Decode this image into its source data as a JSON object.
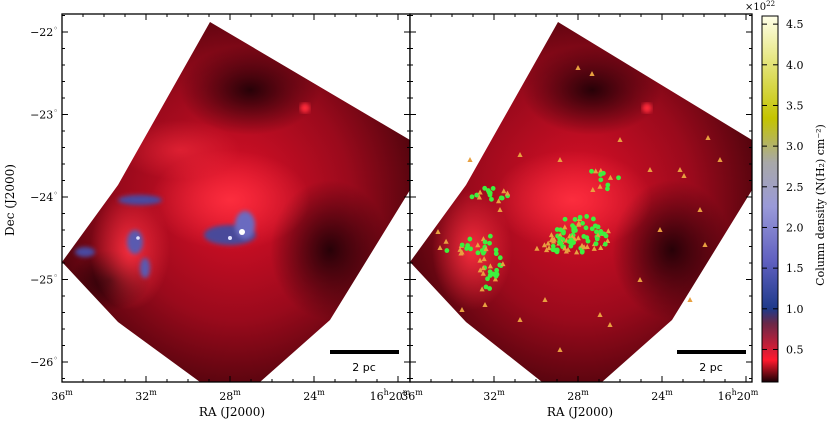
{
  "figure": {
    "x_axis_title": "RA (J2000)",
    "y_axis_title": "Dec (J2000)",
    "dec_ticks": [
      {
        "deg": "−22",
        "sup": "◦",
        "value": -22
      },
      {
        "deg": "−23",
        "sup": "◦",
        "value": -23
      },
      {
        "deg": "−24",
        "sup": "◦",
        "value": -24
      },
      {
        "deg": "−25",
        "sup": "◦",
        "value": -25
      },
      {
        "deg": "−26",
        "sup": "◦",
        "value": -26
      }
    ],
    "ra_ticks_left": [
      {
        "main": "36",
        "sup": "m",
        "value": 36
      },
      {
        "main": "32",
        "sup": "m",
        "value": 32
      },
      {
        "main": "28",
        "sup": "m",
        "value": 28
      },
      {
        "main": "24",
        "sup": "m",
        "value": 24
      },
      {
        "main": "16",
        "sup1": "h",
        "main2": "20",
        "sup": "m",
        "value": 20
      }
    ],
    "ra_ticks_right": [
      {
        "main": "36",
        "sup": "m",
        "value": 36
      },
      {
        "main": "32",
        "sup": "m",
        "value": 32
      },
      {
        "main": "28",
        "sup": "m",
        "value": 28
      },
      {
        "main": "24",
        "sup": "m",
        "value": 24
      },
      {
        "main": "16",
        "sup1": "h",
        "main2": "20",
        "sup": "m",
        "value": 20
      }
    ],
    "scalebar_label_left": "2 pc",
    "scalebar_label_right": "2 pc"
  },
  "colorbar": {
    "label": "Column density (N(H₂) cm⁻²)",
    "multiplier": "×10",
    "multiplier_exp": "22",
    "ticks": [
      "0.5",
      "1.0",
      "1.5",
      "2.0",
      "2.5",
      "3.0",
      "3.5",
      "4.0",
      "4.5"
    ],
    "range": [
      0.1,
      4.6
    ],
    "colors": [
      "#1a0005",
      "#ff1a2e",
      "#5a2a4a",
      "#1e3a8a",
      "#7c7ccf",
      "#a0a0a0",
      "#c4c400",
      "#ffffe0"
    ]
  },
  "markers": {
    "triangle_color": "#e8a040",
    "circle_color": "#3ef03e"
  }
}
